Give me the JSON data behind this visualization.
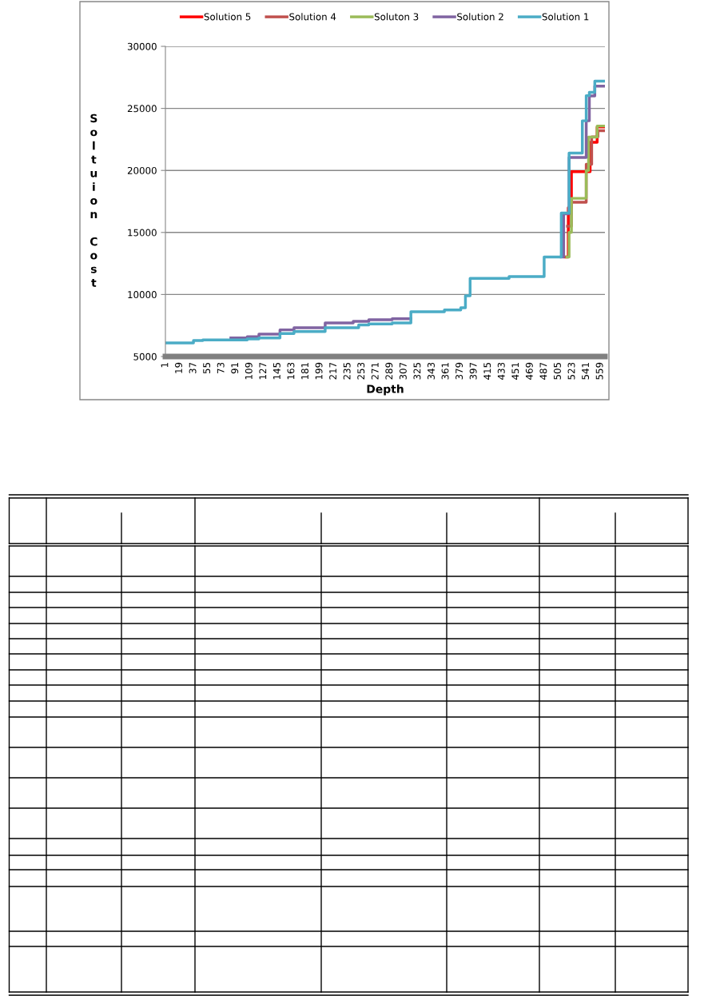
{
  "chart_data": {
    "type": "step",
    "xlabel": "Depth",
    "ylabel": "Soltuion Cost",
    "xlim": [
      1,
      565
    ],
    "xticks": [
      1,
      19,
      37,
      55,
      73,
      91,
      109,
      127,
      145,
      163,
      181,
      199,
      217,
      235,
      253,
      271,
      289,
      307,
      325,
      343,
      361,
      379,
      397,
      415,
      433,
      451,
      469,
      487,
      505,
      523,
      541,
      559
    ],
    "ylim": [
      5000,
      30000
    ],
    "yticks": [
      5000,
      10000,
      15000,
      20000,
      25000,
      30000
    ],
    "grid": "y",
    "legend": "top",
    "series": [
      {
        "name": "Solution 5",
        "color": "#ff0000",
        "x": [
          514,
          518,
          522,
          546,
          555,
          565
        ],
        "values": [
          13020,
          17000,
          19900,
          22270,
          23500,
          23500
        ]
      },
      {
        "name": "Solution 4",
        "color": "#c0504d",
        "x": [
          517,
          522,
          541,
          548,
          556,
          565
        ],
        "values": [
          15500,
          17430,
          20500,
          22700,
          23200,
          23200
        ]
      },
      {
        "name": "Soluton 3",
        "color": "#9bbb59",
        "x": [
          516,
          519,
          522,
          541,
          544,
          555,
          565
        ],
        "values": [
          13020,
          15000,
          17750,
          20000,
          22690,
          23580,
          23580
        ]
      },
      {
        "name": "Solution 2",
        "color": "#8064a2",
        "x": [
          85,
          106,
          121,
          148,
          166,
          206,
          242,
          262,
          292,
          316,
          509,
          512,
          519,
          541,
          545,
          552,
          565
        ],
        "values": [
          6500,
          6590,
          6800,
          7150,
          7320,
          7710,
          7840,
          7970,
          8050,
          null,
          13020,
          16500,
          21040,
          24000,
          26000,
          26800,
          26800
        ]
      },
      {
        "name": "Solution 1",
        "color": "#4bacc6",
        "x": [
          1,
          37,
          49,
          106,
          121,
          148,
          166,
          206,
          249,
          262,
          292,
          316,
          359,
          380,
          386,
          392,
          442,
          487,
          509,
          519,
          536,
          541,
          545,
          552,
          565
        ],
        "values": [
          6100,
          6290,
          6330,
          6420,
          6500,
          6850,
          7020,
          7320,
          7540,
          7620,
          7710,
          8610,
          8760,
          8930,
          9900,
          11300,
          11450,
          13020,
          16560,
          21400,
          24000,
          26030,
          26300,
          27200,
          27200
        ]
      }
    ]
  }
}
